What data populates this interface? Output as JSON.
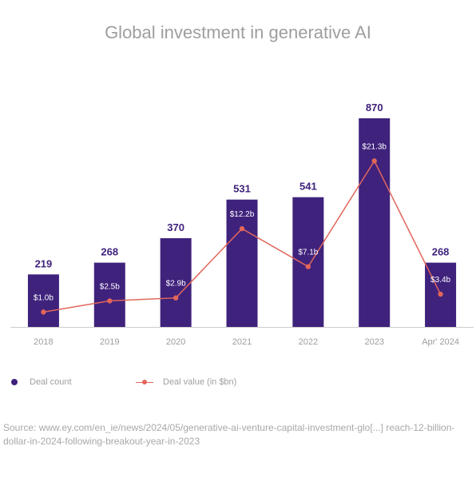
{
  "chart_data": {
    "type": "bar",
    "title": "Global investment in generative AI",
    "categories": [
      "2018",
      "2019",
      "2020",
      "2021",
      "2022",
      "2023",
      "Apr' 2024"
    ],
    "series": [
      {
        "name": "Deal count",
        "type": "bar",
        "color": "#3f227c",
        "values": [
          219,
          268,
          370,
          531,
          541,
          870,
          268
        ]
      },
      {
        "name": "Deal value (in $bn)",
        "type": "line",
        "color": "#e2665a",
        "values": [
          1.0,
          2.5,
          2.9,
          12.2,
          7.1,
          21.3,
          3.4
        ],
        "labels": [
          "$1.0b",
          "$2.5b",
          "$2.9b",
          "$12.2b",
          "$7.1b",
          "$21.3b",
          "$3.4b"
        ]
      }
    ],
    "bar_ylim": [
      0,
      900
    ],
    "line_ylim": [
      -1,
      28
    ],
    "legend": "bottom-left",
    "grid": false
  },
  "source": "Source: www.ey.com/en_ie/news/2024/05/generative-ai-venture-capital-investment-glo[...] reach-12-billion-dollar-in-2024-following-breakout-year-in-2023"
}
